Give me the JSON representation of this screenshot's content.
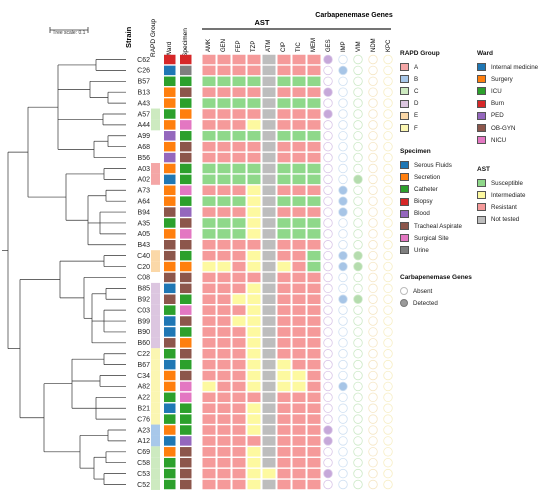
{
  "tree": {
    "scale_label": "Tree scale: 0.1"
  },
  "headers": {
    "strain": "Strain",
    "rapd": "RAPD Group",
    "ward": "Ward",
    "specimen": "Specimen",
    "ast": "AST",
    "carb": "Carbapenemase Genes"
  },
  "ast_columns": [
    "AMK",
    "GEN",
    "FEP",
    "TZP",
    "ATM",
    "CIP",
    "TIC",
    "MEM"
  ],
  "gene_columns": [
    "GES",
    "IMP",
    "VIM",
    "NDM",
    "KPC"
  ],
  "colors": {
    "rapd": {
      "A": "#f4a6a6",
      "B": "#a8c8ea",
      "C": "#cdeac0",
      "D": "#dcc6e0",
      "E": "#fbd8a8",
      "F": "#fbf6b2"
    },
    "ward": {
      "internal": "#1f77b4",
      "surgery": "#ff7f0e",
      "icu": "#2ca02c",
      "burn": "#d62728",
      "ped": "#9467bd",
      "obgyn": "#8c564b",
      "nicu": "#e377c2"
    },
    "specimen": {
      "serous": "#1f77b4",
      "secretion": "#ff7f0e",
      "catheter": "#2ca02c",
      "biopsy": "#d62728",
      "blood": "#9467bd",
      "tracheal": "#8c564b",
      "surgical": "#e377c2",
      "urine": "#7f7f7f"
    },
    "ast": {
      "S": "#8fd88a",
      "I": "#fdf9a0",
      "R": "#f59a9a",
      "N": "#bdbdbd"
    }
  },
  "strains": [
    {
      "name": "C62",
      "rapd": "",
      "ward": "burn",
      "spec": "biopsy",
      "ast": "RRRRNRRR",
      "genes": "10000"
    },
    {
      "name": "C26",
      "rapd": "",
      "ward": "internal",
      "spec": "urine",
      "ast": "RRRRNRRR",
      "genes": "01000"
    },
    {
      "name": "B57",
      "rapd": "",
      "ward": "icu",
      "spec": "catheter",
      "ast": "SSSSNSSS",
      "genes": "00000"
    },
    {
      "name": "B13",
      "rapd": "",
      "ward": "surgery",
      "spec": "tracheal",
      "ast": "RRRRNRRR",
      "genes": "10000"
    },
    {
      "name": "A43",
      "rapd": "",
      "ward": "surgery",
      "spec": "catheter",
      "ast": "SSSSNSSS",
      "genes": "00000"
    },
    {
      "name": "A57",
      "rapd": "C",
      "ward": "icu",
      "spec": "secretion",
      "ast": "RRRRNRRR",
      "genes": "10000"
    },
    {
      "name": "A44",
      "rapd": "C",
      "ward": "surgery",
      "spec": "surgical",
      "ast": "RRRINRRR",
      "genes": "00000"
    },
    {
      "name": "A99",
      "rapd": "",
      "ward": "ped",
      "spec": "catheter",
      "ast": "SSSSNSSS",
      "genes": "00000"
    },
    {
      "name": "A68",
      "rapd": "",
      "ward": "surgery",
      "spec": "tracheal",
      "ast": "RRRRNRRR",
      "genes": "00000"
    },
    {
      "name": "B56",
      "rapd": "",
      "ward": "ped",
      "spec": "tracheal",
      "ast": "RRRRNRRR",
      "genes": "00000"
    },
    {
      "name": "A03",
      "rapd": "A",
      "ward": "surgery",
      "spec": "catheter",
      "ast": "SSSSNSSS",
      "genes": "00000"
    },
    {
      "name": "A02",
      "rapd": "A",
      "ward": "internal",
      "spec": "catheter",
      "ast": "SSSSNSSS",
      "genes": "00100"
    },
    {
      "name": "A73",
      "rapd": "",
      "ward": "surgery",
      "spec": "surgical",
      "ast": "RRRINRRR",
      "genes": "01000"
    },
    {
      "name": "A64",
      "rapd": "",
      "ward": "surgery",
      "spec": "catheter",
      "ast": "SSSINSSS",
      "genes": "01000"
    },
    {
      "name": "B94",
      "rapd": "",
      "ward": "obgyn",
      "spec": "blood",
      "ast": "RRRINRRR",
      "genes": "01000"
    },
    {
      "name": "A35",
      "rapd": "",
      "ward": "icu",
      "spec": "tracheal",
      "ast": "SSSINSSS",
      "genes": "00000"
    },
    {
      "name": "A05",
      "rapd": "",
      "ward": "surgery",
      "spec": "surgical",
      "ast": "SSSINSSS",
      "genes": "00000"
    },
    {
      "name": "B43",
      "rapd": "",
      "ward": "obgyn",
      "spec": "tracheal",
      "ast": "RRRRNRRR",
      "genes": "00000"
    },
    {
      "name": "C40",
      "rapd": "E",
      "ward": "obgyn",
      "spec": "catheter",
      "ast": "RRRINRRS",
      "genes": "01100"
    },
    {
      "name": "C20",
      "rapd": "E",
      "ward": "surgery",
      "spec": "secretion",
      "ast": "IIRINIRS",
      "genes": "01100"
    },
    {
      "name": "C08",
      "rapd": "",
      "ward": "obgyn",
      "spec": "tracheal",
      "ast": "RRRRNRRR",
      "genes": "00000"
    },
    {
      "name": "B85",
      "rapd": "D",
      "ward": "internal",
      "spec": "tracheal",
      "ast": "RRRINRRR",
      "genes": "00000"
    },
    {
      "name": "B92",
      "rapd": "D",
      "ward": "obgyn",
      "spec": "catheter",
      "ast": "RRIINRRR",
      "genes": "01100"
    },
    {
      "name": "C03",
      "rapd": "D",
      "ward": "icu",
      "spec": "surgical",
      "ast": "RRRINRRR",
      "genes": "00000"
    },
    {
      "name": "B99",
      "rapd": "D",
      "ward": "internal",
      "spec": "tracheal",
      "ast": "RRIINRRR",
      "genes": "00000"
    },
    {
      "name": "B90",
      "rapd": "D",
      "ward": "internal",
      "spec": "catheter",
      "ast": "RRRINRRR",
      "genes": "00000"
    },
    {
      "name": "B60",
      "rapd": "D",
      "ward": "obgyn",
      "spec": "secretion",
      "ast": "RRRINRRR",
      "genes": "00000"
    },
    {
      "name": "C22",
      "rapd": "F",
      "ward": "icu",
      "spec": "tracheal",
      "ast": "RRRINRRR",
      "genes": "00000"
    },
    {
      "name": "B67",
      "rapd": "F",
      "ward": "internal",
      "spec": "catheter",
      "ast": "RRRINIRR",
      "genes": "00000"
    },
    {
      "name": "C34",
      "rapd": "F",
      "ward": "surgery",
      "spec": "tracheal",
      "ast": "RRRINIIR",
      "genes": "00000"
    },
    {
      "name": "A82",
      "rapd": "F",
      "ward": "surgery",
      "spec": "surgical",
      "ast": "IRRINIIR",
      "genes": "01000"
    },
    {
      "name": "A22",
      "rapd": "F",
      "ward": "icu",
      "spec": "surgical",
      "ast": "RRRRNRRR",
      "genes": "00000"
    },
    {
      "name": "B21",
      "rapd": "F",
      "ward": "internal",
      "spec": "catheter",
      "ast": "RRRINRRR",
      "genes": "00000"
    },
    {
      "name": "C76",
      "rapd": "F",
      "ward": "icu",
      "spec": "catheter",
      "ast": "RRRINRRR",
      "genes": "00000"
    },
    {
      "name": "A23",
      "rapd": "B",
      "ward": "surgery",
      "spec": "catheter",
      "ast": "RRRINRRR",
      "genes": "10000"
    },
    {
      "name": "A12",
      "rapd": "B",
      "ward": "internal",
      "spec": "blood",
      "ast": "RRRRNRRR",
      "genes": "10000"
    },
    {
      "name": "C69",
      "rapd": "C",
      "ward": "surgery",
      "spec": "tracheal",
      "ast": "RRRINRRR",
      "genes": "00000"
    },
    {
      "name": "C58",
      "rapd": "C",
      "ward": "icu",
      "spec": "tracheal",
      "ast": "RRRINRRR",
      "genes": "00000"
    },
    {
      "name": "C53",
      "rapd": "C",
      "ward": "icu",
      "spec": "tracheal",
      "ast": "RRRIIRRR",
      "genes": "10000"
    },
    {
      "name": "C52",
      "rapd": "C",
      "ward": "icu",
      "spec": "tracheal",
      "ast": "RRRINRRR",
      "genes": "00000"
    }
  ],
  "legend": {
    "rapd": {
      "title": "RAPD Group",
      "items": [
        {
          "key": "A",
          "label": "A"
        },
        {
          "key": "B",
          "label": "B"
        },
        {
          "key": "C",
          "label": "C"
        },
        {
          "key": "D",
          "label": "D"
        },
        {
          "key": "E",
          "label": "E"
        },
        {
          "key": "F",
          "label": "F"
        }
      ]
    },
    "ward": {
      "title": "Ward",
      "items": [
        {
          "key": "internal",
          "label": "Internal medicine"
        },
        {
          "key": "surgery",
          "label": "Surgery"
        },
        {
          "key": "icu",
          "label": "ICU"
        },
        {
          "key": "burn",
          "label": "Burn"
        },
        {
          "key": "ped",
          "label": "PED"
        },
        {
          "key": "obgyn",
          "label": "OB-GYN"
        },
        {
          "key": "nicu",
          "label": "NICU"
        }
      ]
    },
    "specimen": {
      "title": "Specimen",
      "items": [
        {
          "key": "serous",
          "label": "Serous Fluids"
        },
        {
          "key": "secretion",
          "label": "Secretion"
        },
        {
          "key": "catheter",
          "label": "Catheter"
        },
        {
          "key": "biopsy",
          "label": "Biopsy"
        },
        {
          "key": "blood",
          "label": "Blood"
        },
        {
          "key": "tracheal",
          "label": "Tracheal Aspirate"
        },
        {
          "key": "surgical",
          "label": "Surgical Site"
        },
        {
          "key": "urine",
          "label": "Urine"
        }
      ]
    },
    "ast": {
      "title": "AST",
      "items": [
        {
          "key": "S",
          "label": "Susceptible"
        },
        {
          "key": "I",
          "label": "Intermediate"
        },
        {
          "key": "R",
          "label": "Resistant"
        },
        {
          "key": "N",
          "label": "Not tested"
        }
      ]
    },
    "genes": {
      "title": "Carbapenemase Genes",
      "absent": "Absent",
      "detected": "Detected"
    }
  }
}
